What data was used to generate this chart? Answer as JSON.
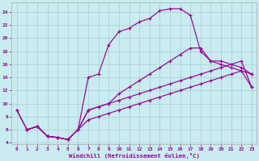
{
  "bg_color": "#c8ecf0",
  "grid_color": "#b8d8e0",
  "line_color": "#990099",
  "xlabel": "Windchill (Refroidissement éolien,°C)",
  "xlim": [
    -0.5,
    23.5
  ],
  "ylim": [
    3.8,
    25.5
  ],
  "xticks": [
    0,
    1,
    2,
    3,
    4,
    5,
    6,
    7,
    8,
    9,
    10,
    11,
    12,
    13,
    14,
    15,
    16,
    17,
    18,
    19,
    20,
    21,
    22,
    23
  ],
  "yticks": [
    4,
    6,
    8,
    10,
    12,
    14,
    16,
    18,
    20,
    22,
    24
  ],
  "line_arc": {
    "x": [
      0,
      1,
      2,
      3,
      4,
      5,
      6,
      7,
      8,
      9,
      10,
      11,
      12,
      13,
      14,
      15,
      16,
      17,
      18,
      19,
      20,
      21,
      22,
      23
    ],
    "y": [
      9.0,
      6.0,
      6.5,
      5.0,
      4.8,
      4.5,
      6.0,
      14.0,
      14.5,
      19.0,
      21.0,
      21.5,
      22.5,
      23.0,
      24.2,
      24.5,
      24.5,
      23.5,
      18.0,
      16.5,
      16.0,
      15.5,
      15.0,
      14.5
    ]
  },
  "line_upper_diag": {
    "x": [
      0,
      1,
      2,
      3,
      4,
      5,
      6,
      7,
      8,
      9,
      10,
      11,
      12,
      13,
      14,
      15,
      16,
      17,
      18,
      19,
      20,
      21,
      22,
      23
    ],
    "y": [
      9.0,
      6.0,
      6.5,
      5.0,
      4.8,
      4.5,
      6.0,
      9.0,
      9.5,
      10.0,
      11.5,
      12.5,
      13.5,
      14.5,
      15.5,
      16.5,
      17.5,
      18.5,
      18.5,
      16.5,
      16.5,
      16.0,
      15.5,
      14.5
    ]
  },
  "line_mid_diag": {
    "x": [
      1,
      2,
      3,
      4,
      5,
      6,
      7,
      8,
      9,
      10,
      11,
      12,
      13,
      14,
      15,
      16,
      17,
      18,
      19,
      20,
      21,
      22,
      23
    ],
    "y": [
      6.0,
      6.5,
      5.0,
      4.8,
      4.5,
      6.0,
      9.0,
      9.5,
      10.0,
      10.5,
      11.0,
      11.5,
      12.0,
      12.5,
      13.0,
      13.5,
      14.0,
      14.5,
      15.0,
      15.5,
      16.0,
      16.5,
      12.5
    ]
  },
  "line_low_diag": {
    "x": [
      1,
      2,
      3,
      4,
      5,
      6,
      7,
      8,
      9,
      10,
      11,
      12,
      13,
      14,
      15,
      16,
      17,
      18,
      19,
      20,
      21,
      22,
      23
    ],
    "y": [
      6.0,
      6.5,
      5.0,
      4.8,
      4.5,
      6.0,
      7.5,
      8.0,
      8.5,
      9.0,
      9.5,
      10.0,
      10.5,
      11.0,
      11.5,
      12.0,
      12.5,
      13.0,
      13.5,
      14.0,
      14.5,
      15.0,
      12.5
    ]
  }
}
